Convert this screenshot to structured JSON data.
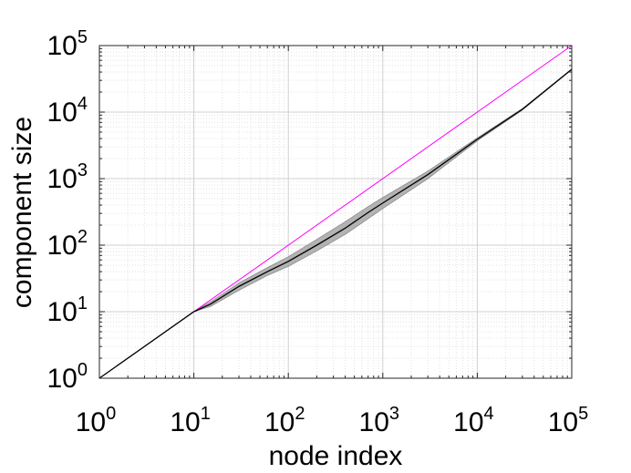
{
  "chart_data": {
    "type": "line",
    "title": "",
    "xlabel": "node index",
    "ylabel": "component size",
    "xscale": "log",
    "yscale": "log",
    "xlim": [
      1,
      100000
    ],
    "ylim": [
      1,
      100000
    ],
    "grid": "major and minor, dotted",
    "x_ticks": [
      {
        "value": 1,
        "base": "10",
        "exp": "0"
      },
      {
        "value": 10,
        "base": "10",
        "exp": "1"
      },
      {
        "value": 100,
        "base": "10",
        "exp": "2"
      },
      {
        "value": 1000,
        "base": "10",
        "exp": "3"
      },
      {
        "value": 10000,
        "base": "10",
        "exp": "4"
      },
      {
        "value": 100000,
        "base": "10",
        "exp": "5"
      }
    ],
    "y_ticks": [
      {
        "value": 1,
        "base": "10",
        "exp": "0"
      },
      {
        "value": 10,
        "base": "10",
        "exp": "1"
      },
      {
        "value": 100,
        "base": "10",
        "exp": "2"
      },
      {
        "value": 1000,
        "base": "10",
        "exp": "3"
      },
      {
        "value": 10000,
        "base": "10",
        "exp": "4"
      },
      {
        "value": 100000,
        "base": "10",
        "exp": "5"
      }
    ],
    "series": [
      {
        "color": "#ff00ff",
        "x": [
          1,
          100000
        ],
        "y": [
          1,
          100000
        ]
      },
      {
        "color": "#000000",
        "x": [
          1,
          10,
          15,
          30,
          60,
          100,
          200,
          400,
          700,
          1000,
          3000,
          10000,
          30000,
          100000
        ],
        "y": [
          1,
          10,
          13,
          24,
          40,
          57,
          100,
          180,
          310,
          430,
          1150,
          3900,
          11000,
          44000
        ]
      }
    ],
    "band": {
      "color": "#a6a6a6",
      "x": [
        10,
        15,
        30,
        60,
        100,
        200,
        400,
        700,
        1000,
        3000,
        10000,
        30000,
        100000
      ],
      "lower": [
        10,
        12,
        21,
        35,
        48,
        82,
        145,
        250,
        355,
        1000,
        3700,
        10700,
        43500
      ],
      "upper": [
        10,
        14,
        27,
        46,
        67,
        122,
        225,
        380,
        520,
        1300,
        4100,
        11300,
        44500
      ]
    }
  }
}
